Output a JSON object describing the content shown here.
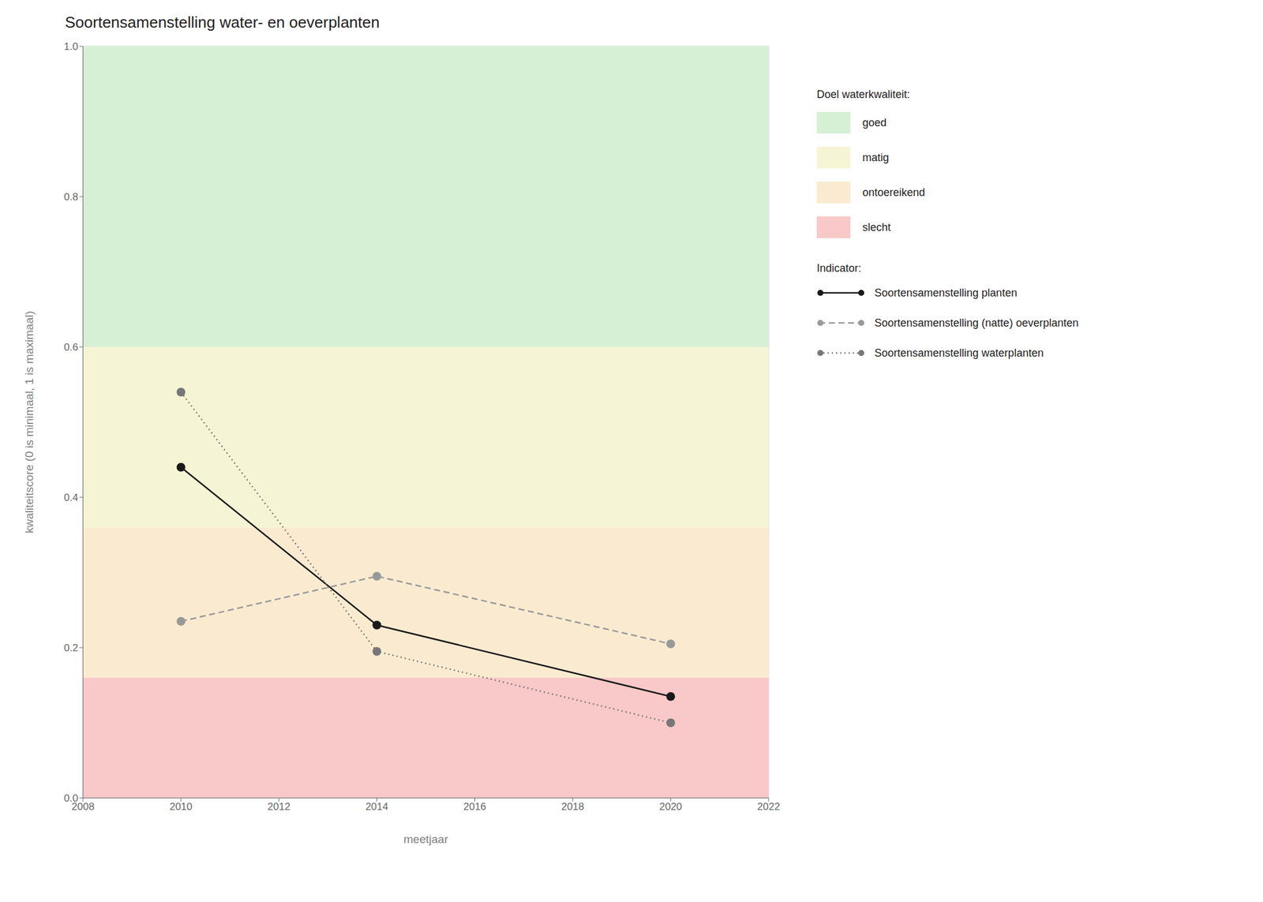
{
  "chart_data": {
    "type": "line",
    "title": "Soortensamenstelling water- en oeverplanten",
    "x_label": "meetjaar",
    "y_label": "kwaliteitscore (0 is minimaal, 1 is maximaal)",
    "x": [
      2010,
      2014,
      2020
    ],
    "series": [
      {
        "name": "Soortensamenstelling planten",
        "color": "#1a1a1a",
        "line_style": "solid",
        "marker": "circle",
        "values": [
          0.44,
          0.23,
          0.135
        ]
      },
      {
        "name": "Soortensamenstelling (natte) oeverplanten",
        "color": "#999999",
        "line_style": "dashed",
        "marker": "circle",
        "values": [
          0.235,
          0.295,
          0.205
        ]
      },
      {
        "name": "Soortensamenstelling waterplanten",
        "color": "#777777",
        "line_style": "dotted",
        "marker": "circle",
        "values": [
          0.54,
          0.195,
          0.1
        ]
      }
    ],
    "xlim": [
      2008,
      2022
    ],
    "xticks": [
      2008,
      2010,
      2012,
      2014,
      2016,
      2018,
      2020,
      2022
    ],
    "ylim": [
      0.0,
      1.0
    ],
    "yticks": [
      {
        "value": 0,
        "label": "0.0"
      },
      0.2,
      0.4,
      0.6,
      0.8,
      {
        "value": 1,
        "label": "1.0"
      }
    ],
    "grid": true,
    "legend": "right",
    "band_legend_title": "Doel waterkwaliteit:",
    "series_legend_title": "Indicator:",
    "bands": [
      {
        "name": "goed",
        "ymin": 0.6,
        "ymax": 1.0,
        "color": "#d5f0d5"
      },
      {
        "name": "matig",
        "ymin": 0.36,
        "ymax": 0.6,
        "color": "#f5f5d5"
      },
      {
        "name": "ontoereikend",
        "ymin": 0.16,
        "ymax": 0.36,
        "color": "#faebd0"
      },
      {
        "name": "slecht",
        "ymin": 0.0,
        "ymax": 0.16,
        "color": "#f9c8c8"
      }
    ]
  }
}
